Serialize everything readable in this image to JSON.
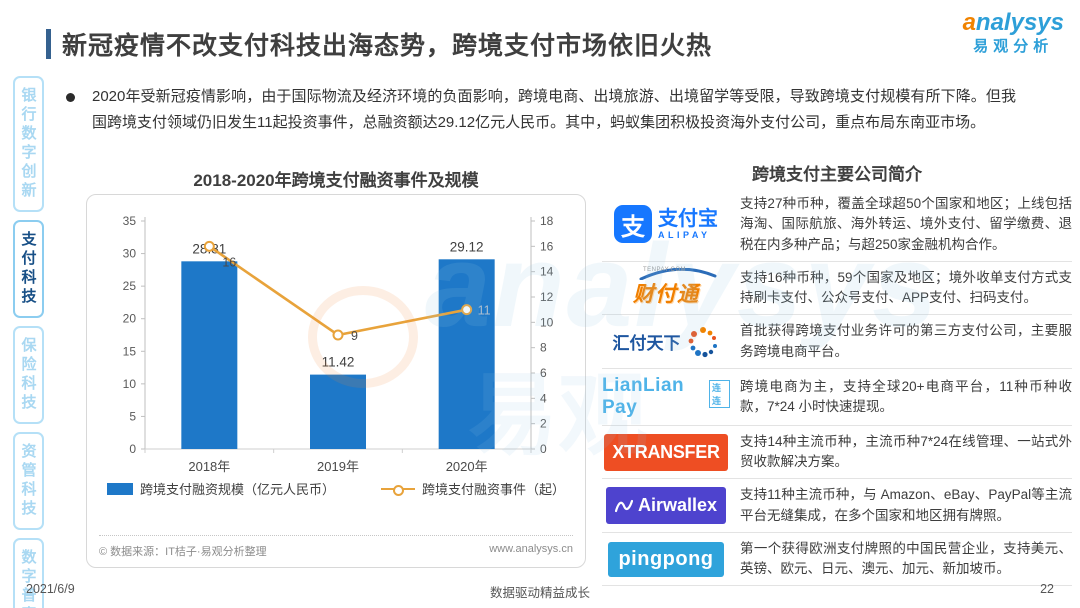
{
  "header": {
    "title": "新冠疫情不改支付科技出海态势，跨境支付市场依旧火热",
    "logo": {
      "brand": "analysys",
      "brand_cn": "易观分析"
    }
  },
  "watermark": {
    "en": "analysys",
    "cn": "易观"
  },
  "sidebar": {
    "items": [
      {
        "label": "银行数字创新",
        "active": false
      },
      {
        "label": "支付科技",
        "active": true
      },
      {
        "label": "保险科技",
        "active": false
      },
      {
        "label": "资管科技",
        "active": false
      },
      {
        "label": "数字普惠",
        "active": false
      }
    ]
  },
  "summary": {
    "bullet_text": "2020年受新冠疫情影响，由于国际物流及经济环境的负面影响，跨境电商、出境旅游、出境留学等受限，导致跨境支付规模有所下降。但我国跨境支付领域仍旧发生11起投资事件，总融资额达29.12亿元人民币。其中，蚂蚁集团积极投资海外支付公司，重点布局东南亚市场。"
  },
  "chart_data": {
    "type": "bar",
    "title": "2018-2020年跨境支付融资事件及规模",
    "categories": [
      "2018年",
      "2019年",
      "2020年"
    ],
    "series": [
      {
        "name": "跨境支付融资规模（亿元人民币）",
        "kind": "bar",
        "axis": "left",
        "values": [
          28.81,
          11.42,
          29.12
        ],
        "color": "#1E78C8"
      },
      {
        "name": "跨境支付融资事件（起）",
        "kind": "line",
        "axis": "right",
        "values": [
          16,
          9,
          11
        ],
        "color": "#E8A33B"
      }
    ],
    "left_axis": {
      "min": 0,
      "max": 35,
      "step": 5
    },
    "right_axis": {
      "min": 0,
      "max": 18,
      "step": 2
    },
    "grid": false,
    "legend_position": "bottom",
    "source_left": "© 数据来源：IT桔子·易观分析整理",
    "source_right": "www.analysys.cn"
  },
  "companies_panel": {
    "title": "跨境支付主要公司简介",
    "companies": [
      {
        "name": "支付宝",
        "logo": {
          "glyph": "支",
          "cn": "支付宝",
          "en": "ALIPAY"
        },
        "desc": "支持27种币种，覆盖全球超50个国家和地区；上线包括海淘、国际航旅、海外转运、境外支付、留学缴费、退税在内多种产品；与超250家金融机构合作。"
      },
      {
        "name": "财付通",
        "logo": {
          "cn": "财付通",
          "en": "TENPAY.COM"
        },
        "desc": "支持16种币种，59个国家及地区；境外收单支付方式支持刷卡支付、公众号支付、APP支付、扫码支付。"
      },
      {
        "name": "汇付天下",
        "logo": {
          "cn": "汇付天下"
        },
        "desc": "首批获得跨境支付业务许可的第三方支付公司，主要服务跨境电商平台。"
      },
      {
        "name": "LianLian Pay",
        "logo": {
          "en": "LianLian Pay",
          "cn": "连连"
        },
        "desc": "跨境电商为主，支持全球20+电商平台，11种币种收款，7*24 小时快速提现。"
      },
      {
        "name": "XTRANSFER",
        "logo": {
          "en": "XTRANSFER"
        },
        "desc": "支持14种主流币种，主流币种7*24在线管理、一站式外贸收款解决方案。"
      },
      {
        "name": "Airwallex",
        "logo": {
          "en": "Airwallex"
        },
        "desc": "支持11种主流币种，与 Amazon、eBay、PayPal等主流平台无缝集成，在多个国家和地区拥有牌照。"
      },
      {
        "name": "pingpong",
        "logo": {
          "en": "pingpong"
        },
        "desc": "第一个获得欧洲支付牌照的中国民营企业，支持美元、英镑、欧元、日元、澳元、加元、新加坡币。"
      }
    ]
  },
  "footer": {
    "date": "2021/6/9",
    "center": "数据驱动精益成长",
    "page": "22"
  },
  "colors": {
    "bar_blue": "#1E78C8",
    "line_orange": "#E8A33B",
    "brand_blue": "#2D9FD8",
    "brand_orange": "#F08300",
    "sidebar_active": "#174f86",
    "sidebar_inactive": "#a9d8f2",
    "alipay_blue": "#1677FF",
    "tenpay_orange": "#F07F00",
    "huifu_blue": "#1e56a0",
    "lianlian_blue": "#4FB3E8",
    "xtransfer_red": "#EE4E23",
    "airwallex_purple": "#4E43CE",
    "pingpong_blue": "#2FA3DB"
  }
}
